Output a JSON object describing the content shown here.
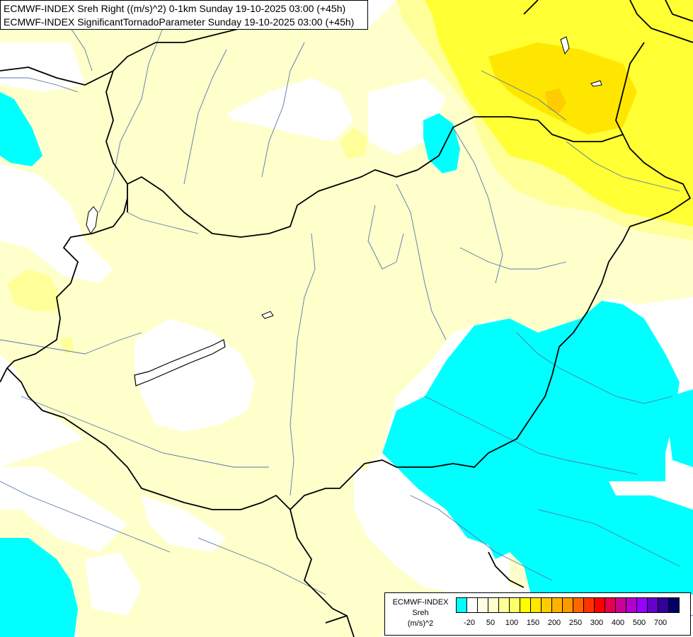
{
  "header": {
    "line1": "ECMWF-INDEX Sreh Right ((m/s)^2) 0-1km Sunday 19-10-2025 03:00 (+45h)",
    "line2": "ECMWF-INDEX SignificantTornadoParameter Sunday 19-10-2025 03:00 (+45h)"
  },
  "legend": {
    "model": "ECMWF-INDEX",
    "variable": "Sreh",
    "unit": "(m/s)^2",
    "colors": [
      "#00ffff",
      "#ffffff",
      "#ffffe6",
      "#ffffcc",
      "#ffff99",
      "#ffff66",
      "#ffff00",
      "#ffe600",
      "#ffcc00",
      "#ffb300",
      "#ff9900",
      "#ff6600",
      "#ff3300",
      "#ff0000",
      "#e6004d",
      "#cc0099",
      "#b300cc",
      "#9900ff",
      "#6600cc",
      "#330099",
      "#000066"
    ],
    "tick_labels": [
      "-20",
      "50",
      "100",
      "150",
      "200",
      "250",
      "300",
      "400",
      "500",
      "700"
    ]
  },
  "map": {
    "colors": {
      "background": "#ffffff",
      "pale_yellow": "#ffffcc",
      "light_yellow": "#ffff99",
      "yellow": "#ffff33",
      "gold": "#ffe600",
      "cyan": "#00ffff",
      "border": "#000000",
      "river": "#5577aa"
    }
  }
}
